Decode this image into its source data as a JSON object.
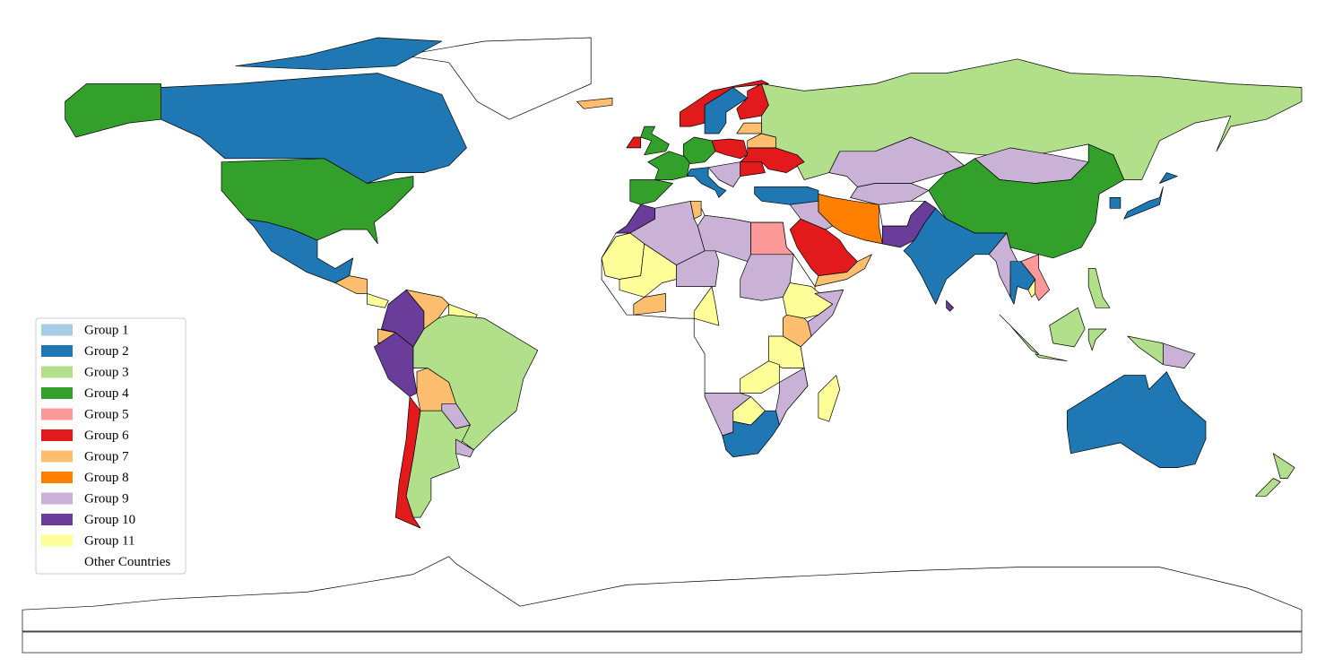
{
  "legend": {
    "items": [
      {
        "label": "Group 1",
        "color": "#a6cee3"
      },
      {
        "label": "Group 2",
        "color": "#1f78b4"
      },
      {
        "label": "Group 3",
        "color": "#b2df8a"
      },
      {
        "label": "Group 4",
        "color": "#33a02c"
      },
      {
        "label": "Group 5",
        "color": "#fb9a99"
      },
      {
        "label": "Group 6",
        "color": "#e31a1c"
      },
      {
        "label": "Group 7",
        "color": "#fdbf6f"
      },
      {
        "label": "Group 8",
        "color": "#ff7f00"
      },
      {
        "label": "Group 9",
        "color": "#cab2d6"
      },
      {
        "label": "Group 10",
        "color": "#6a3d9a"
      },
      {
        "label": "Group 11",
        "color": "#ffff99"
      },
      {
        "label": "Other Countries",
        "color": "#ffffff"
      }
    ]
  }
}
